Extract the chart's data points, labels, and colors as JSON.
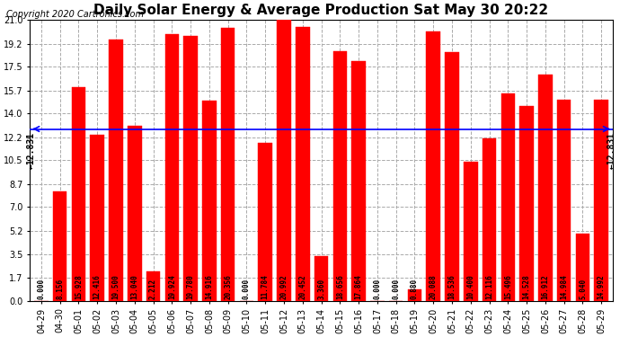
{
  "title": "Daily Solar Energy & Average Production Sat May 30 20:22",
  "copyright": "Copyright 2020 Cartronics.com",
  "categories": [
    "04-29",
    "04-30",
    "05-01",
    "05-02",
    "05-03",
    "05-04",
    "05-05",
    "05-06",
    "05-07",
    "05-08",
    "05-09",
    "05-10",
    "05-11",
    "05-12",
    "05-13",
    "05-14",
    "05-15",
    "05-16",
    "05-17",
    "05-18",
    "05-19",
    "05-20",
    "05-21",
    "05-22",
    "05-23",
    "05-24",
    "05-25",
    "05-26",
    "05-27",
    "05-28",
    "05-29"
  ],
  "values": [
    0.0,
    8.156,
    15.928,
    12.416,
    19.5,
    13.04,
    2.212,
    19.924,
    19.78,
    14.916,
    20.356,
    0.0,
    11.784,
    20.992,
    20.452,
    3.36,
    18.656,
    17.864,
    0.0,
    0.0,
    0.88,
    20.088,
    18.536,
    10.4,
    12.116,
    15.496,
    14.528,
    16.912,
    14.984,
    5.04,
    14.992
  ],
  "average_value": 12.831,
  "bar_color": "#ff0000",
  "average_color": "#0000ff",
  "yticks": [
    0.0,
    1.7,
    3.5,
    5.2,
    7.0,
    8.7,
    10.5,
    12.2,
    14.0,
    15.7,
    17.5,
    19.2,
    21.0
  ],
  "ylim": [
    0,
    21.0
  ],
  "background_color": "#ffffff",
  "grid_color": "#aaaaaa",
  "title_fontsize": 11,
  "copyright_fontsize": 7,
  "label_fontsize": 5.5,
  "tick_fontsize": 7,
  "avg_label_fontsize": 7
}
